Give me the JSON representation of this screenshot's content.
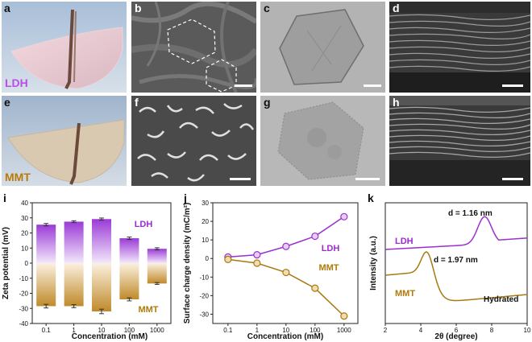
{
  "panels": {
    "a": {
      "label": "a",
      "material": "LDH"
    },
    "b": {
      "label": "b"
    },
    "c": {
      "label": "c"
    },
    "d": {
      "label": "d"
    },
    "e": {
      "label": "e",
      "material": "MMT"
    },
    "f": {
      "label": "f"
    },
    "g": {
      "label": "g"
    },
    "h": {
      "label": "h"
    },
    "i": {
      "label": "i"
    },
    "j": {
      "label": "j"
    },
    "k": {
      "label": "k"
    }
  },
  "colors": {
    "ldh": "#9b2fd0",
    "mmt": "#a87910",
    "ldh_text": "#9d2ad4",
    "mmt_text": "#b07a0a"
  },
  "chart_data": [
    {
      "type": "bar",
      "panel": "i",
      "categories": [
        "0.1",
        "1",
        "10",
        "100",
        "1000"
      ],
      "series": [
        {
          "name": "LDH",
          "values": [
            25.5,
            27.5,
            29.2,
            16.5,
            9.5
          ],
          "errors": [
            0.8,
            0.6,
            0.7,
            0.8,
            0.7
          ]
        },
        {
          "name": "MMT",
          "values": [
            -28.5,
            -28.5,
            -32.0,
            -24.0,
            -13.5
          ],
          "errors": [
            1.2,
            1.0,
            1.5,
            1.0,
            0.6
          ]
        }
      ],
      "xlabel": "Concentration (mM)",
      "ylabel": "Zeta potential (mV)",
      "ylim": [
        -40,
        40
      ],
      "yticks": [
        "-40",
        "-30",
        "-20",
        "-10",
        "0",
        "10",
        "20",
        "30",
        "40"
      ]
    },
    {
      "type": "line",
      "panel": "j",
      "x": [
        0.1,
        1,
        10,
        100,
        1000
      ],
      "xticks": [
        "0.1",
        "1",
        "10",
        "100",
        "1000"
      ],
      "series": [
        {
          "name": "LDH",
          "values": [
            0.8,
            2.0,
            6.5,
            12.0,
            22.5
          ]
        },
        {
          "name": "MMT",
          "values": [
            -0.5,
            -2.5,
            -7.5,
            -16.0,
            -31.0
          ]
        }
      ],
      "xlabel": "Concentration (mM)",
      "ylabel": "Surface charge density (mC/m²)",
      "ylim": [
        -35,
        30
      ],
      "yticks": [
        "-30",
        "-20",
        "-10",
        "0",
        "10",
        "20",
        "30"
      ]
    },
    {
      "type": "line",
      "panel": "k",
      "xlabel": "2θ (degree)",
      "ylabel": "Intensity (a.u.)",
      "xlim": [
        2,
        10
      ],
      "xticks": [
        "2",
        "4",
        "6",
        "8",
        "10"
      ],
      "series": [
        {
          "name": "LDH",
          "peak_x": 7.6,
          "annotation": "d = 1.16 nm"
        },
        {
          "name": "MMT",
          "peak_x": 4.4,
          "annotation": "d = 1.97 nm"
        }
      ],
      "annotations": [
        "d = 1.16 nm",
        "d = 1.97 nm",
        "Hydrated"
      ]
    }
  ]
}
